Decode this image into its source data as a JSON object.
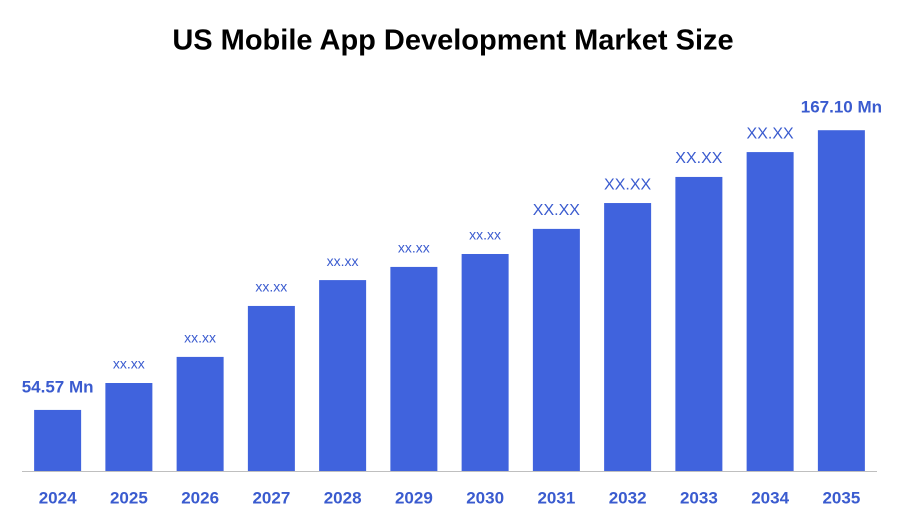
{
  "chart_data": {
    "type": "bar",
    "title": "US Mobile App Development Market Size",
    "categories": [
      "2024",
      "2025",
      "2026",
      "2027",
      "2028",
      "2029",
      "2030",
      "2031",
      "2032",
      "2033",
      "2034",
      "2035"
    ],
    "values": [
      54.57,
      65.4,
      75.9,
      96.4,
      106.8,
      112.1,
      117.3,
      127.4,
      137.8,
      148.3,
      158.3,
      167.1
    ],
    "value_labels": [
      "54.57 Mn",
      "xx.xx",
      "xx.xx",
      "xx.xx",
      "xx.xx",
      "xx.xx",
      "xx.xx",
      "XX.XX",
      "XX.XX",
      "XX.XX",
      "XX.XX",
      "167.10 Mn"
    ],
    "color": "#4063dd",
    "ylim": [
      30,
      170
    ]
  }
}
